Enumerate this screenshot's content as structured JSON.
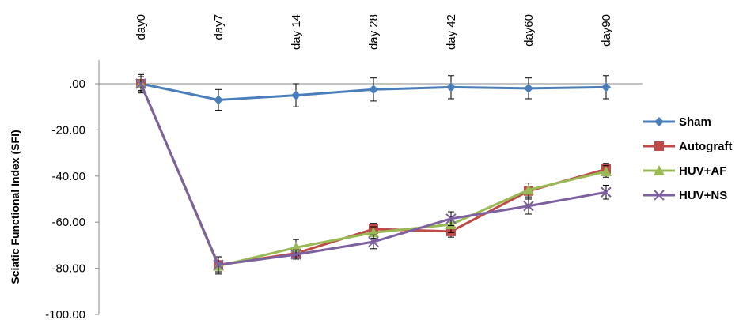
{
  "chart_data": {
    "type": "line",
    "categories": [
      "day0",
      "day7",
      "day 14",
      "day 28",
      "day 42",
      "day60",
      "day90"
    ],
    "ylabel": "Sciatic Functional Index (SFI)",
    "ylim": [
      -100,
      0
    ],
    "yticks": [
      ".00",
      "-20.00",
      "-40.00",
      "-60.00",
      "-80.00",
      "-100.00"
    ],
    "ytick_values": [
      0,
      -20,
      -40,
      -60,
      -80,
      -100
    ],
    "grid": false,
    "legend_position": "right",
    "series": [
      {
        "name": "Sham",
        "color": "#4a7ebb",
        "marker": "diamond",
        "values": [
          0,
          -7,
          -5,
          -2.5,
          -1.5,
          -2,
          -1.5
        ],
        "errors": [
          4,
          4.5,
          5,
          5,
          5,
          4.5,
          5
        ]
      },
      {
        "name": "Autograft",
        "color": "#be4b48",
        "marker": "square",
        "values": [
          0,
          -78.5,
          -73.5,
          -63,
          -64,
          -46.5,
          -37
        ],
        "errors": [
          3,
          3.5,
          2,
          2.5,
          2.5,
          3.5,
          2.5
        ]
      },
      {
        "name": "HUV+AF",
        "color": "#98b954",
        "marker": "triangle",
        "values": [
          0,
          -79,
          -71,
          -64.5,
          -61,
          -46,
          -38
        ],
        "errors": [
          3,
          3.5,
          3.5,
          2.5,
          3.5,
          3,
          2.5
        ]
      },
      {
        "name": "HUV+NS",
        "color": "#7d60a0",
        "marker": "x",
        "values": [
          0,
          -78.5,
          -74,
          -68.5,
          -58.5,
          -53,
          -47
        ],
        "errors": [
          3,
          3,
          2,
          3,
          3,
          3.5,
          3
        ]
      }
    ]
  }
}
